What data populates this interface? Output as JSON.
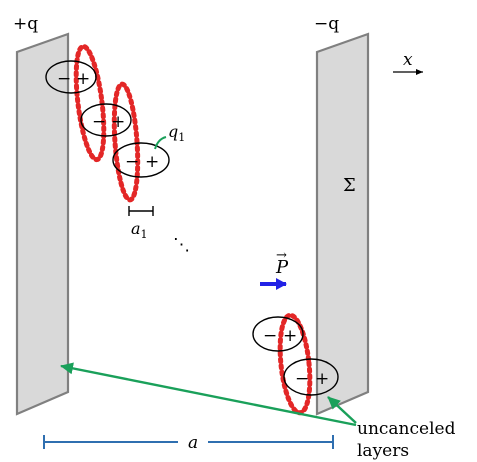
{
  "labels": {
    "left_plate_charge": "+q",
    "right_plate_charge": "−q",
    "x_axis": "x",
    "charge_label": "q",
    "charge_label_sub": "1",
    "spacing_label": "a",
    "spacing_label_sub": "1",
    "ellipsis": "⋱",
    "surface_label": "Σ",
    "polarization_label": "P",
    "polarization_arrow_mark": "→",
    "distance_label": "a",
    "annotation_line1": "uncanceled",
    "annotation_line2": "layers",
    "dipole_minus": "−",
    "dipole_plus": "+"
  },
  "colors": {
    "plate_fill": "#d9d9d9",
    "plate_stroke": "#808080",
    "dotted_layer": "#e32727",
    "polarization_arrow": "#2222e6",
    "annotation_arrow": "#1aa05a",
    "distance_bar": "#2f6fb0"
  }
}
